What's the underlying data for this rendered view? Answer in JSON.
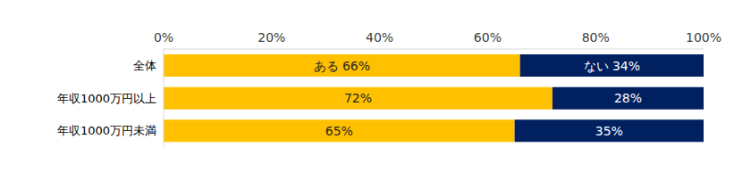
{
  "chart_data": {
    "type": "bar",
    "orientation": "horizontal",
    "stacked": true,
    "data_labels": true,
    "grid": false,
    "categories": [
      "全体",
      "年収1000万円以上",
      "年収1000万円未満"
    ],
    "series": [
      {
        "name": "ある",
        "color": "#FFC000",
        "values": [
          66,
          72,
          65
        ],
        "value_labels": [
          "ある 66%",
          "72%",
          "65%"
        ]
      },
      {
        "name": "ない",
        "color": "#002060",
        "values": [
          34,
          28,
          35
        ],
        "value_labels": [
          "ない 34%",
          "28%",
          "35%"
        ]
      }
    ],
    "xlim": [
      0,
      100
    ],
    "xticks": [
      {
        "value": 0,
        "label": "0%"
      },
      {
        "value": 20,
        "label": "20%"
      },
      {
        "value": 40,
        "label": "40%"
      },
      {
        "value": 60,
        "label": "60%"
      },
      {
        "value": 80,
        "label": "80%"
      },
      {
        "value": 100,
        "label": "100%"
      }
    ]
  }
}
